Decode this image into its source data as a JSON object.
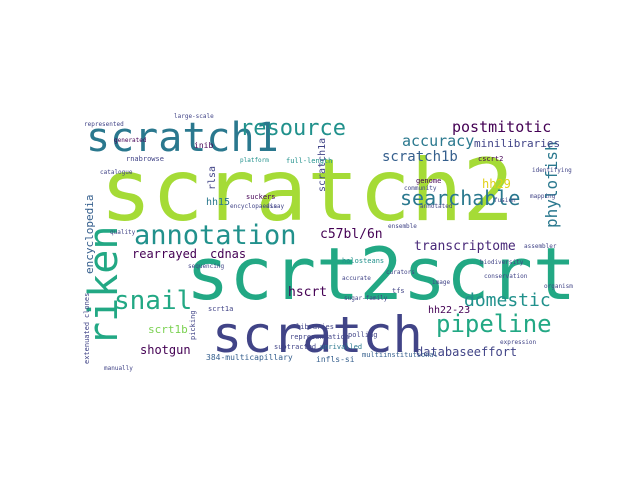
{
  "figure": {
    "kind": "word cloud",
    "palette": {
      "lime": "#a5db36",
      "green": "#7ad151",
      "teal": "#22a884",
      "teal_dark": "#21918c",
      "blue": "#2a788e",
      "blue_dark": "#355f8d",
      "indigo": "#414487",
      "purple": "#482878",
      "purple_dark": "#440154",
      "yellow": "#e0d21a"
    },
    "words": {
      "scratch2": "scratch2",
      "scrt2scrt": "scrt2scrt",
      "scratch": "scratch",
      "scratch1": "scratch1",
      "riken": "riken",
      "annotation": "annotation",
      "pipeline": "pipeline",
      "searchable": "searchable",
      "resource": "resource",
      "postmitotic": "postmitotic",
      "snail": "snail",
      "domestic": "domestic",
      "scratch1b": "scratch1b",
      "phylofish": "phylofish",
      "accuracy": "accuracy",
      "minilibraries": "minilibraries",
      "transcriptome": "transcriptome",
      "c57bl6n": "c57bl/6n",
      "encyclopedia": "encyclopedia",
      "rearrayed": "rearrayed",
      "cdnas": "cdnas",
      "hh15": "hh15",
      "hh29": "hh29",
      "scratch1a": "scratch1a",
      "hscrt": "hscrt",
      "hh2223": "hh22-23",
      "databaseeffort": "databaseeffort",
      "shotgun": "shotgun",
      "scrt1b": "scrt1b",
      "rnabrowse": "rnabrowse",
      "cscrt2": "cscrt2",
      "multicapillary": "384-multicapillary",
      "infls_si": "infls-si",
      "multiinstitutional": "multiinstitutional",
      "full_length": "full-length",
      "inib": "inib",
      "genome": "genome",
      "polling": "polling",
      "subtracted": "subtracted",
      "representation": "representation",
      "libraries": "libraries",
      "holosteans": "holosteans",
      "unrivalled": "unrivalled",
      "rlsa": "rlsa",
      "suckers": "suckers",
      "picking": "picking",
      "scrt1a": "scrt1a",
      "clones": "clones",
      "extenuated": "extenuated",
      "tfs": "tfs",
      "generated": "generated",
      "represented": "represented",
      "large_scale": "large-scale",
      "platform": "platform",
      "identifying": "identifying",
      "mapping": "mapping",
      "quality": "quality",
      "accurate": "accurate",
      "assembler": "assembler",
      "encyclopaedia": "encyclopaedia",
      "curators": "curators",
      "biodiversity": "biodiversity",
      "conservation": "conservation",
      "sequencing": "sequencing",
      "manually": "manually",
      "image": "image",
      "ensemble": "ensemble",
      "fusion": "fusion",
      "catalogue": "catalogue",
      "sugarfamily": "sugar-family",
      "assay": "assay",
      "community": "community",
      "annotated": "annotated",
      "organism": "organism",
      "expression": "expression"
    }
  }
}
